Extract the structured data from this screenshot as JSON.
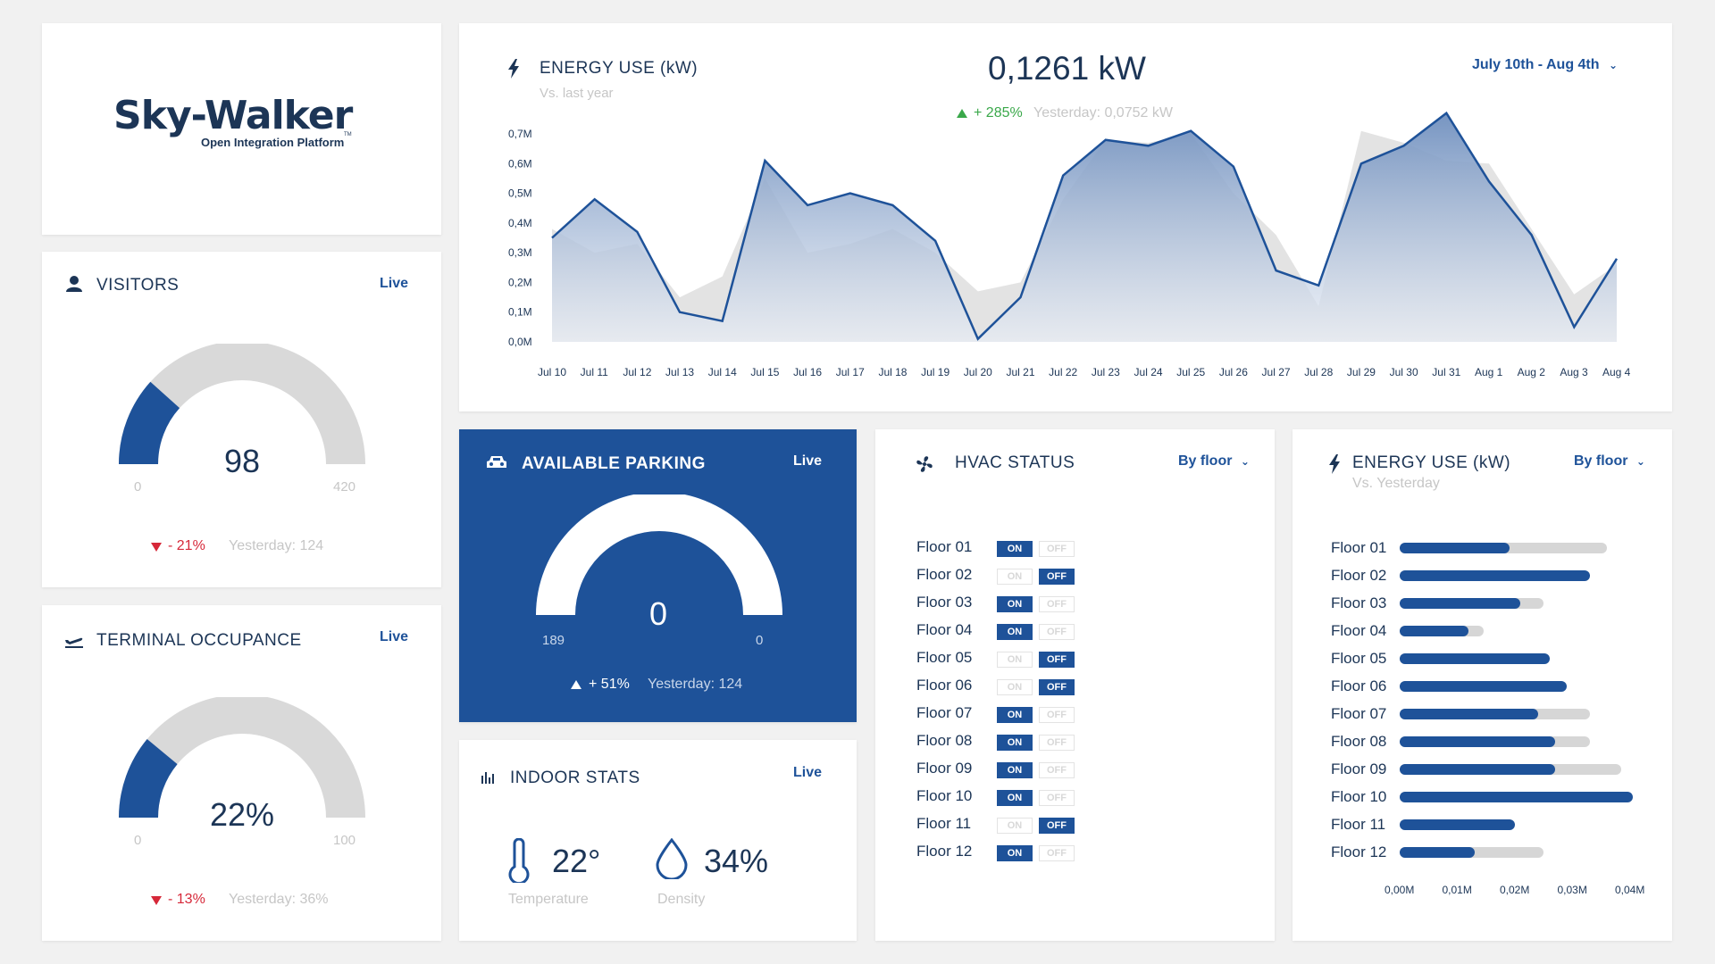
{
  "logo": {
    "name": "Sky-Walker",
    "tagline": "Open Integration Platform",
    "tm": "TM"
  },
  "visitors": {
    "title": "VISITORS",
    "live": "Live",
    "value": "98",
    "min": "0",
    "max": "420",
    "fraction": 0.233,
    "delta": "- 21%",
    "yesterday": "Yesterday: 124"
  },
  "terminal": {
    "title": "TERMINAL OCCUPANCE",
    "live": "Live",
    "value": "22%",
    "min": "0",
    "max": "100",
    "fraction": 0.22,
    "delta": "- 13%",
    "yesterday": "Yesterday: 36%"
  },
  "energy": {
    "title": "ENERGY USE (kW)",
    "subtitle": "Vs. last year",
    "value": "0,1261 kW",
    "delta": "+ 285%",
    "yesterday": "Yesterday: 0,0752 kW",
    "range": "July 10th - Aug 4th"
  },
  "chart_data": {
    "type": "area",
    "x": [
      "Jul 10",
      "Jul 11",
      "Jul 12",
      "Jul 13",
      "Jul 14",
      "Jul 15",
      "Jul 16",
      "Jul 17",
      "Jul 18",
      "Jul 19",
      "Jul 20",
      "Jul 21",
      "Jul 22",
      "Jul 23",
      "Jul 24",
      "Jul 25",
      "Jul 26",
      "Jul 27",
      "Jul 28",
      "Jul 29",
      "Jul 30",
      "Jul 31",
      "Aug 1",
      "Aug 2",
      "Aug 3",
      "Aug 4"
    ],
    "series": [
      {
        "values": [
          0.38,
          0.3,
          0.33,
          0.15,
          0.22,
          0.55,
          0.3,
          0.33,
          0.38,
          0.3,
          0.17,
          0.2,
          0.48,
          0.68,
          0.67,
          0.7,
          0.5,
          0.36,
          0.12,
          0.71,
          0.67,
          0.61,
          0.6,
          0.38,
          0.16,
          0.26
        ]
      },
      {
        "values": [
          0.35,
          0.48,
          0.37,
          0.1,
          0.07,
          0.61,
          0.46,
          0.5,
          0.46,
          0.34,
          0.01,
          0.15,
          0.56,
          0.68,
          0.66,
          0.71,
          0.59,
          0.24,
          0.19,
          0.6,
          0.66,
          0.77,
          0.54,
          0.36,
          0.05,
          0.28
        ]
      }
    ],
    "yticks": [
      "0,0M",
      "0,1M",
      "0,2M",
      "0,3M",
      "0,4M",
      "0,5M",
      "0,6M",
      "0,7M"
    ],
    "ylim": [
      0,
      0.7
    ],
    "grid": false
  },
  "parking": {
    "title": "AVAILABLE PARKING",
    "live": "Live",
    "value": "0",
    "min": "189",
    "max": "0",
    "fraction": 1.0,
    "delta": "+ 51%",
    "yesterday": "Yesterday: 124"
  },
  "indoor": {
    "title": "INDOOR STATS",
    "live": "Live",
    "temp_value": "22°",
    "temp_label": "Temperature",
    "density_value": "34%",
    "density_label": "Density"
  },
  "hvac": {
    "title": "HVAC STATUS",
    "dropdown": "By floor",
    "on_label": "ON",
    "off_label": "OFF",
    "floors": [
      {
        "label": "Floor 01",
        "on": true
      },
      {
        "label": "Floor 02",
        "on": false
      },
      {
        "label": "Floor 03",
        "on": true
      },
      {
        "label": "Floor 04",
        "on": true
      },
      {
        "label": "Floor 05",
        "on": false
      },
      {
        "label": "Floor 06",
        "on": false
      },
      {
        "label": "Floor 07",
        "on": true
      },
      {
        "label": "Floor 08",
        "on": true
      },
      {
        "label": "Floor 09",
        "on": true
      },
      {
        "label": "Floor 10",
        "on": true
      },
      {
        "label": "Floor 11",
        "on": false
      },
      {
        "label": "Floor 12",
        "on": true
      }
    ]
  },
  "floor_energy": {
    "title": "ENERGY USE (kW)",
    "subtitle": "Vs. Yesterday",
    "dropdown": "By floor",
    "ticks": [
      "0,00M",
      "0,01M",
      "0,02M",
      "0,03M",
      "0,04M"
    ],
    "xmax": 0.04,
    "floors": [
      {
        "label": "Floor 01",
        "value": 0.019,
        "yesterday": 0.036
      },
      {
        "label": "Floor 02",
        "value": 0.033,
        "yesterday": 0.03
      },
      {
        "label": "Floor 03",
        "value": 0.021,
        "yesterday": 0.025
      },
      {
        "label": "Floor 04",
        "value": 0.012,
        "yesterday": 0.0145
      },
      {
        "label": "Floor 05",
        "value": 0.026,
        "yesterday": 0.02
      },
      {
        "label": "Floor 06",
        "value": 0.029,
        "yesterday": 0.025
      },
      {
        "label": "Floor 07",
        "value": 0.024,
        "yesterday": 0.033
      },
      {
        "label": "Floor 08",
        "value": 0.027,
        "yesterday": 0.033
      },
      {
        "label": "Floor 09",
        "value": 0.027,
        "yesterday": 0.0385
      },
      {
        "label": "Floor 10",
        "value": 0.0405,
        "yesterday": 0.033
      },
      {
        "label": "Floor 11",
        "value": 0.02,
        "yesterday": 0.015
      },
      {
        "label": "Floor 12",
        "value": 0.013,
        "yesterday": 0.025
      }
    ]
  }
}
